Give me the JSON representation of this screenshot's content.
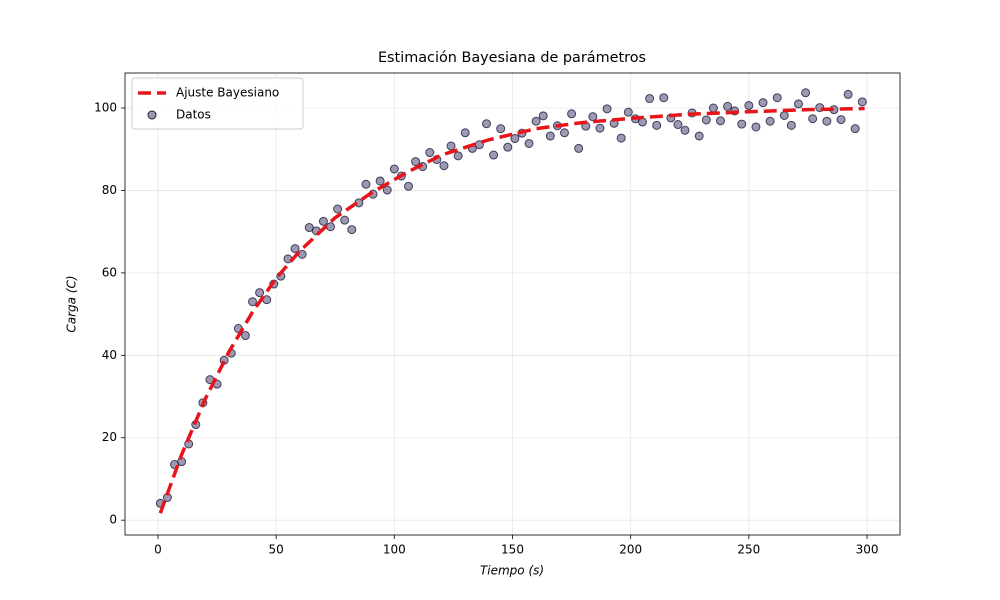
{
  "chart_data": {
    "type": "scatter",
    "title": "Estimación Bayesiana de parámetros",
    "x_label": "Tiempo (s)",
    "y_label": "Carga (C)",
    "xlim": [
      -13.95,
      313.95
    ],
    "ylim": [
      -3.6,
      108.5
    ],
    "xticks": [
      0,
      50,
      100,
      150,
      200,
      250,
      300
    ],
    "yticks": [
      0,
      20,
      40,
      60,
      80,
      100
    ],
    "grid": true,
    "legend": "upper left",
    "series": [
      {
        "name": "Ajuste Bayesiano",
        "type": "line",
        "color": "#e8141a",
        "x": [
          1,
          10,
          20,
          30,
          40,
          50,
          60,
          75,
          90,
          105,
          120,
          140,
          160,
          180,
          200,
          225,
          250,
          275,
          299
        ],
        "values": [
          1.7,
          15.9,
          29.4,
          40.8,
          50.5,
          58.7,
          65.3,
          73.4,
          79.3,
          84.3,
          88.6,
          92.3,
          95.0,
          96.5,
          97.5,
          98.5,
          99.1,
          99.6,
          99.9
        ]
      },
      {
        "name": "Datos",
        "type": "scatter",
        "color": "#3d3466",
        "x": [
          1,
          4,
          7,
          10,
          13,
          16,
          19,
          22,
          25,
          28,
          31,
          34,
          37,
          40,
          43,
          46,
          49,
          52,
          55,
          58,
          61,
          64,
          67,
          70,
          73,
          76,
          79,
          82,
          85,
          88,
          91,
          94,
          97,
          100,
          103,
          106,
          109,
          112,
          115,
          118,
          121,
          124,
          127,
          130,
          133,
          136,
          139,
          142,
          145,
          148,
          151,
          154,
          157,
          160,
          163,
          166,
          169,
          172,
          175,
          178,
          181,
          184,
          187,
          190,
          193,
          196,
          199,
          202,
          205,
          208,
          211,
          214,
          217,
          220,
          223,
          226,
          229,
          232,
          235,
          238,
          241,
          244,
          247,
          250,
          253,
          256,
          259,
          262,
          265,
          268,
          271,
          274,
          277,
          280,
          283,
          286,
          289,
          292,
          295,
          298
        ],
        "values": [
          4.1,
          5.5,
          13.5,
          14.2,
          18.5,
          23.2,
          28.5,
          34.1,
          33.0,
          38.8,
          40.5,
          46.5,
          44.8,
          53.0,
          55.2,
          53.5,
          57.3,
          59.2,
          63.4,
          65.9,
          64.5,
          71.0,
          70.2,
          72.5,
          71.2,
          75.5,
          72.8,
          70.5,
          77.0,
          81.5,
          79.1,
          82.3,
          80.1,
          85.2,
          83.5,
          81.0,
          87.0,
          85.8,
          89.2,
          87.5,
          86.0,
          90.8,
          88.4,
          94.0,
          90.2,
          91.1,
          96.2,
          88.6,
          95.0,
          90.5,
          92.6,
          93.9,
          91.4,
          96.8,
          98.1,
          93.2,
          95.7,
          94.0,
          98.6,
          90.2,
          95.6,
          97.9,
          95.1,
          99.8,
          96.3,
          92.7,
          99.0,
          97.4,
          96.6,
          102.3,
          95.8,
          102.5,
          97.6,
          96.0,
          94.6,
          98.8,
          93.2,
          97.1,
          100.0,
          96.9,
          100.4,
          99.3,
          96.1,
          100.6,
          95.4,
          101.3,
          96.8,
          102.5,
          98.2,
          95.8,
          101.0,
          103.7,
          97.4,
          100.1,
          96.8,
          99.6,
          97.2,
          103.3,
          95.0,
          101.5
        ]
      }
    ]
  }
}
